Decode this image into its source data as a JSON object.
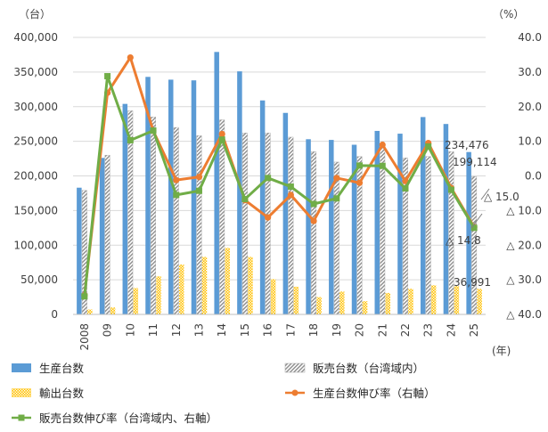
{
  "chart_data": {
    "type": "bar",
    "left_unit": "（台）",
    "right_unit": "（%）",
    "x_unit": "(年)",
    "categories": [
      "2008",
      "09",
      "10",
      "11",
      "12",
      "13",
      "14",
      "15",
      "16",
      "17",
      "18",
      "19",
      "20",
      "21",
      "22",
      "23",
      "24",
      "25"
    ],
    "left_axis": {
      "ylim": [
        0,
        400000
      ],
      "ticks": [
        "0",
        "50,000",
        "100,000",
        "150,000",
        "200,000",
        "250,000",
        "300,000",
        "350,000",
        "400,000"
      ]
    },
    "right_axis": {
      "ylim": [
        -40,
        40
      ],
      "ticks": [
        "40.0",
        "30.0",
        "20.0",
        "10.0",
        "0.0",
        "△ 10.0",
        "△ 20.0",
        "△ 30.0",
        "△ 40.0"
      ]
    },
    "bar_series": [
      {
        "name": "生産台数",
        "color": "#5B9BD5",
        "pattern": "solid",
        "values": [
          183000,
          226000,
          304000,
          343000,
          339000,
          338000,
          379000,
          351000,
          309000,
          291000,
          253000,
          252000,
          245000,
          265000,
          261000,
          285000,
          275000,
          234476
        ]
      },
      {
        "name": "販売台数（台湾域内）",
        "color": "#A6A6A6",
        "pattern": "hatch",
        "values": [
          179000,
          230000,
          294000,
          285000,
          270000,
          258000,
          281000,
          262000,
          262000,
          256000,
          235000,
          220000,
          228000,
          241000,
          226000,
          228000,
          235000,
          199114
        ]
      },
      {
        "name": "輸出台数",
        "color": "#FFC000",
        "pattern": "dots",
        "values": [
          7000,
          10000,
          38000,
          55000,
          72000,
          83000,
          96000,
          83000,
          51000,
          40000,
          25000,
          33000,
          19000,
          31000,
          37000,
          42000,
          41000,
          36991
        ]
      }
    ],
    "line_series": [
      {
        "name": "生産台数伸び率（右軸）",
        "color": "#ED7D31",
        "values": [
          -34.5,
          24.0,
          34.2,
          13.0,
          -1.2,
          -0.3,
          12.1,
          -7.0,
          -12.0,
          -5.5,
          -13.0,
          -0.6,
          -2.0,
          9.0,
          -1.5,
          9.5,
          -3.5,
          -14.8
        ]
      },
      {
        "name": "販売台数伸び率（台湾域内、右軸）",
        "color": "#70AD47",
        "values": [
          -34.8,
          28.8,
          10.3,
          13.1,
          -5.5,
          -4.3,
          10.5,
          -6.7,
          -0.6,
          -3.1,
          -8.1,
          -6.5,
          3.0,
          2.9,
          -3.6,
          8.5,
          -4.0,
          -15.0
        ]
      }
    ],
    "annotations": [
      "234,476",
      "199,114",
      "△ 15.0",
      "△ 14.8",
      "36,991"
    ],
    "legend_position": "bottom"
  }
}
